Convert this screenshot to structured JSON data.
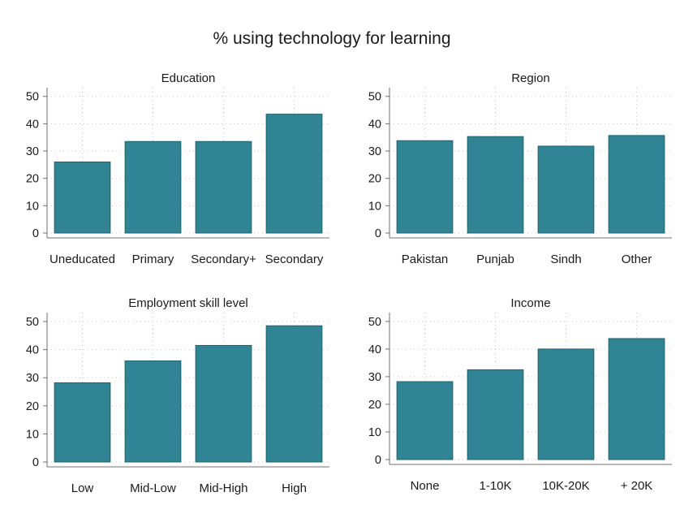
{
  "title": "% using technology for learning",
  "chart_data": [
    {
      "type": "bar",
      "title": "Education",
      "categories": [
        "Uneducated",
        "Primary",
        "Secondary+",
        "Secondary"
      ],
      "values": [
        26,
        33.5,
        33.5,
        43.5
      ],
      "ylim": [
        0,
        50
      ],
      "yticks": [
        0,
        10,
        20,
        30,
        40,
        50
      ],
      "grid": true,
      "color": "#318493"
    },
    {
      "type": "bar",
      "title": "Region",
      "categories": [
        "Pakistan",
        "Punjab",
        "Sindh",
        "Other"
      ],
      "values": [
        33.8,
        35.3,
        31.8,
        35.7
      ],
      "ylim": [
        0,
        50
      ],
      "yticks": [
        0,
        10,
        20,
        30,
        40,
        50
      ],
      "grid": true,
      "color": "#318493"
    },
    {
      "type": "bar",
      "title": "Employment skill level",
      "categories": [
        "Low",
        "Mid-Low",
        "Mid-High",
        "High"
      ],
      "values": [
        28.2,
        36,
        41.5,
        48.5
      ],
      "ylim": [
        0,
        50
      ],
      "yticks": [
        0,
        10,
        20,
        30,
        40,
        50
      ],
      "grid": true,
      "color": "#318493"
    },
    {
      "type": "bar",
      "title": "Income",
      "categories": [
        "None",
        "1-10K",
        "10K-20K",
        "+ 20K"
      ],
      "values": [
        28.2,
        32.5,
        40,
        43.8
      ],
      "ylim": [
        0,
        50
      ],
      "yticks": [
        0,
        10,
        20,
        30,
        40,
        50
      ],
      "grid": true,
      "color": "#318493"
    }
  ]
}
